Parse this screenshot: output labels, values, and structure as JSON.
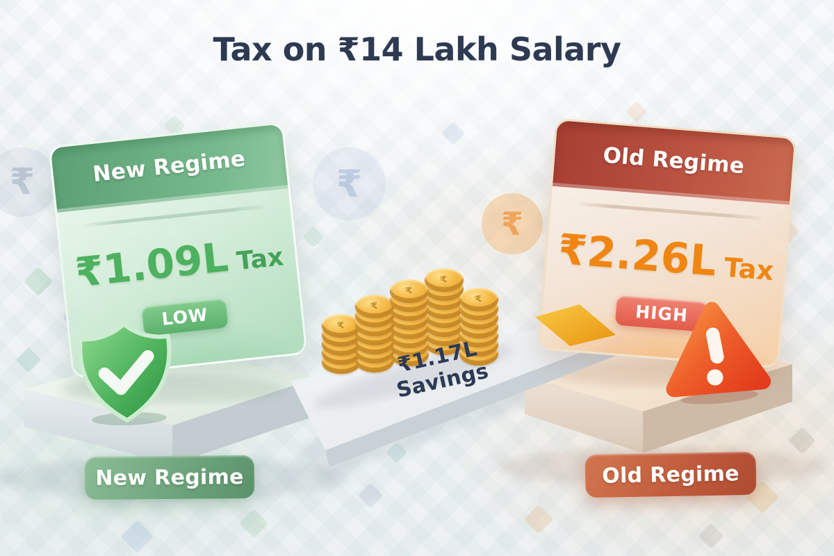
{
  "title": "Tax on ₹14 Lakh Salary",
  "comparison": {
    "salary": "₹14 Lakh",
    "new_regime": {
      "label": "New Regime",
      "tax": "₹1.09L",
      "tax_suffix": "Tax",
      "badge": "LOW"
    },
    "old_regime": {
      "label": "Old Regime",
      "tax": "₹2.26L",
      "tax_suffix": "Tax",
      "badge": "HIGH"
    },
    "savings_label": "₹1.17L Savings"
  },
  "footer": {
    "left_pill": "New Regime",
    "right_pill": "Old Regime"
  },
  "decorations": {
    "coin_stacks": [
      5,
      7,
      8,
      8,
      7
    ],
    "coin_symbol": "₹",
    "watermark_symbol": "₹"
  },
  "colors": {
    "title_text": "#2d3a52",
    "new_header_green": "#6aa87f",
    "new_amount_green": "#4db15f",
    "old_header_red": "#b14a3b",
    "old_amount_orange": "#ef8613",
    "coin_gold": "#f0b544",
    "savings_text": "#2c3a55",
    "ramp_yellow": "#f3b32a"
  }
}
